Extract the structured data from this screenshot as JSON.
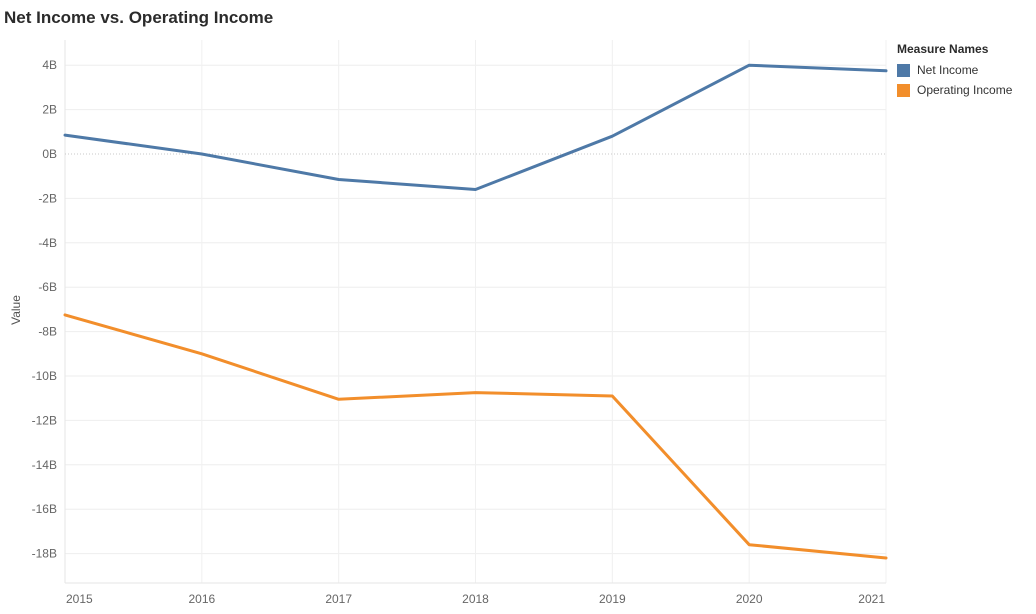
{
  "chart_data": {
    "type": "line",
    "title": "Net Income vs. Operating Income",
    "xlabel": "",
    "ylabel": "Value",
    "x": [
      "2015",
      "2016",
      "2017",
      "2018",
      "2019",
      "2020",
      "2021"
    ],
    "series": [
      {
        "name": "Net Income",
        "color": "#4e79a7",
        "values": [
          0.85,
          0.0,
          -1.15,
          -1.6,
          0.8,
          4.0,
          3.75
        ]
      },
      {
        "name": "Operating Income",
        "color": "#f28e2b",
        "values": [
          -7.25,
          -9.0,
          -11.05,
          -10.75,
          -10.9,
          -17.6,
          -18.2
        ]
      }
    ],
    "yticks": [
      4,
      2,
      0,
      -2,
      -4,
      -6,
      -8,
      -10,
      -12,
      -14,
      -16,
      -18
    ],
    "ytick_labels": [
      "4B",
      "2B",
      "0B",
      "-2B",
      "-4B",
      "-6B",
      "-8B",
      "-10B",
      "-12B",
      "-14B",
      "-16B",
      "-18B"
    ],
    "ylim": [
      -19.3,
      5.0
    ],
    "unit": "B",
    "grid": true,
    "zero_line": true,
    "legend": {
      "title": "Measure Names",
      "placement": "top-right"
    }
  }
}
